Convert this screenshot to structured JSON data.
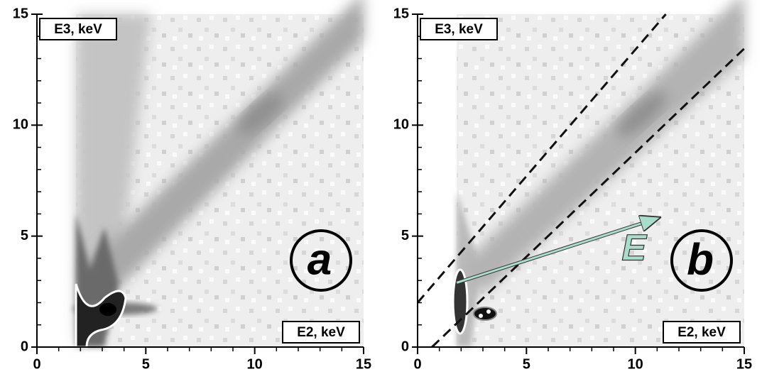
{
  "chart_data": [
    {
      "type": "heatmap",
      "panel_label": "a",
      "xlabel": "E2, keV",
      "ylabel": "E3, keV",
      "xlim": [
        0,
        15
      ],
      "ylim": [
        0,
        15
      ],
      "xticks": [
        0,
        5,
        10,
        15
      ],
      "yticks": [
        0,
        5,
        10,
        15
      ],
      "minor_xticks": [
        1,
        2,
        3,
        4,
        6,
        7,
        8,
        9,
        11,
        12,
        13,
        14
      ],
      "minor_yticks": [
        1,
        2,
        3,
        4,
        6,
        7,
        8,
        9,
        11,
        12,
        13,
        14
      ]
    },
    {
      "type": "heatmap",
      "panel_label": "b",
      "xlabel": "E2, keV",
      "ylabel": "E3, keV",
      "xlim": [
        0,
        15
      ],
      "ylim": [
        0,
        15
      ],
      "xticks": [
        0,
        5,
        10,
        15
      ],
      "yticks": [
        0,
        5,
        10,
        15
      ],
      "minor_xticks": [
        1,
        2,
        3,
        4,
        6,
        7,
        8,
        9,
        11,
        12,
        13,
        14
      ],
      "minor_yticks": [
        1,
        2,
        3,
        4,
        6,
        7,
        8,
        9,
        11,
        12,
        13,
        14
      ],
      "lines": [
        {
          "x": [
            0,
            11.4
          ],
          "values": [
            2,
            15
          ],
          "color": "#111111"
        },
        {
          "x": [
            0.66,
            15
          ],
          "values": [
            0,
            13.45
          ],
          "color": "#111111"
        }
      ],
      "annotation": {
        "text": "E",
        "x": [
          1.8,
          11
        ],
        "y": [
          2.9,
          5.8
        ],
        "color": "#a9dccb"
      }
    }
  ]
}
